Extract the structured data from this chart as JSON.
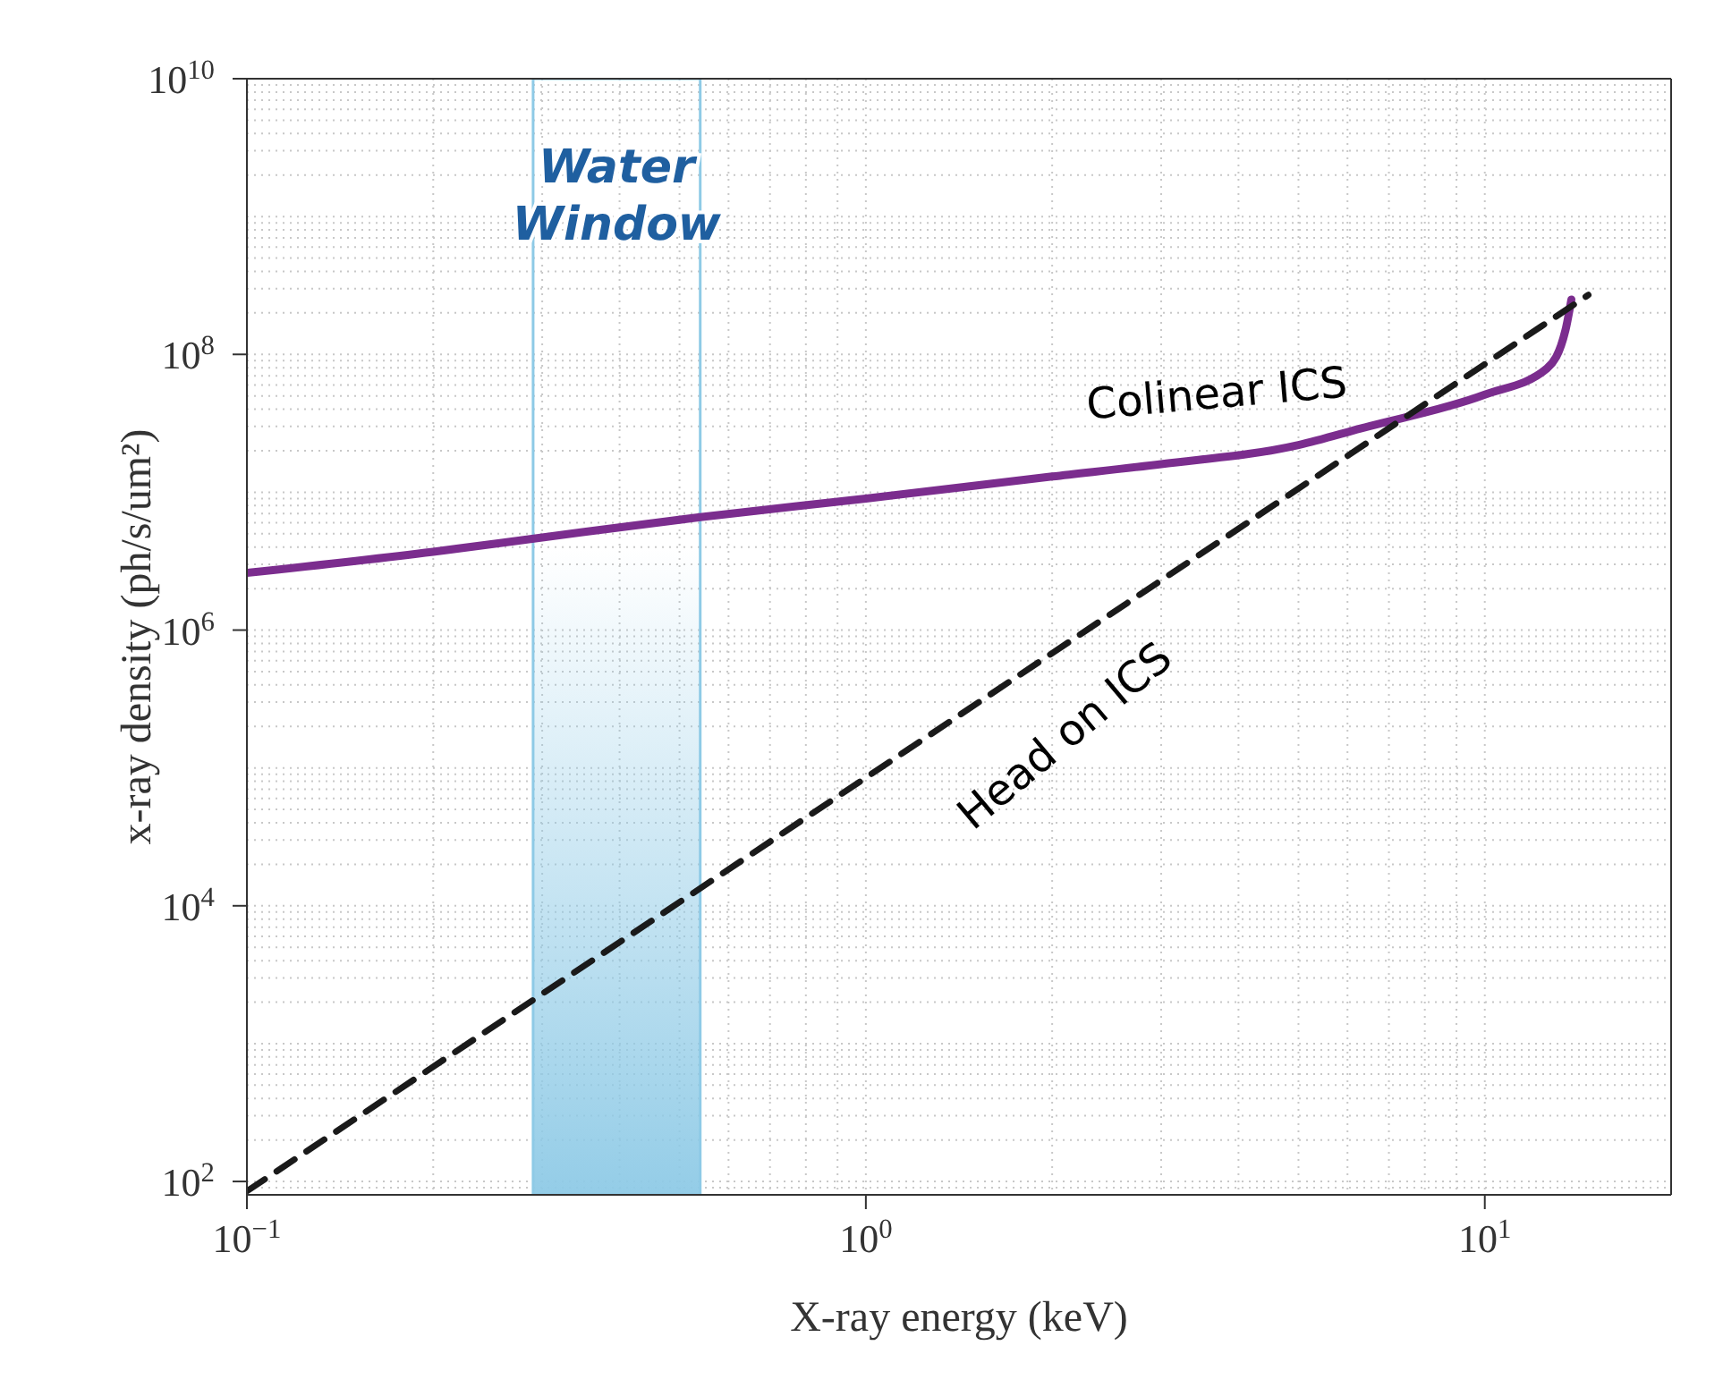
{
  "chart_data": {
    "type": "line",
    "xlabel": "X-ray energy (keV)",
    "ylabel": "x-ray density (ph/s/um²)",
    "log": "xy",
    "grid": true,
    "xlim": [
      0.1,
      20
    ],
    "xticks": [
      {
        "value": 0.1,
        "label": "10$^{−1}$"
      },
      {
        "value": 1,
        "label": "10$^{0}$"
      },
      {
        "value": 10,
        "label": "10$^{1}$"
      }
    ],
    "ylim": [
      80,
      10000000000
    ],
    "yticks": [
      {
        "value": 100,
        "label": "10$^{2}$"
      },
      {
        "value": 10000,
        "label": "10$^{4}$"
      },
      {
        "value": 1000000,
        "label": "10$^{6}$"
      },
      {
        "value": 100000000,
        "label": "10$^{8}$"
      },
      {
        "value": 10000000000,
        "label": "10$^{10}$"
      }
    ],
    "series": [
      {
        "name": "Colinear ICS",
        "color": "#7b2d8e",
        "line_style": "solid",
        "x": [
          0.1,
          0.2,
          0.3,
          0.54,
          1,
          2,
          3,
          5,
          6.3,
          10,
          12.6,
          13.5,
          13.8
        ],
        "values": [
          2600000,
          3700000,
          4700000,
          6600000,
          9000000,
          13000000,
          16000000,
          22000000,
          29000000,
          51000000,
          79000000,
          150000000,
          250000000
        ]
      },
      {
        "name": "Head on ICS",
        "color": "#1a1a1a",
        "line_style": "dashed",
        "x": [
          0.1,
          1,
          10,
          14.7
        ],
        "values": [
          85,
          85000,
          85000000,
          270000000
        ]
      }
    ],
    "bands": [
      {
        "axis": "x",
        "from": 0.29,
        "to": 0.54,
        "label": "Water Window",
        "color": "#8ecae6"
      }
    ]
  }
}
